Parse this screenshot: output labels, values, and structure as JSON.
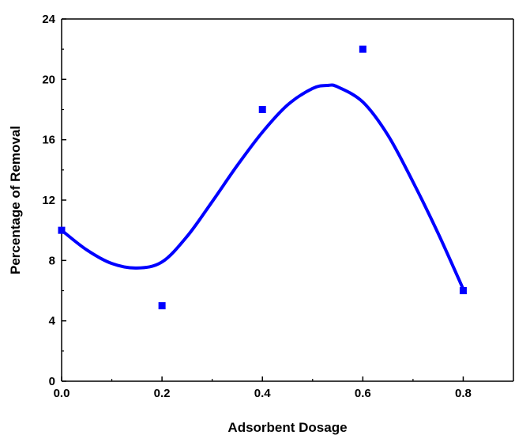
{
  "chart_data": {
    "type": "scatter",
    "title": "",
    "xlabel": "Adsorbent Dosage",
    "ylabel": "Percentage of Removal",
    "xlim": [
      0,
      0.9
    ],
    "ylim": [
      0,
      24
    ],
    "x_ticks": [
      0.0,
      0.2,
      0.4,
      0.6,
      0.8
    ],
    "x_tick_labels": [
      "0.0",
      "0.2",
      "0.4",
      "0.6",
      "0.8"
    ],
    "y_ticks": [
      0,
      4,
      8,
      12,
      16,
      20,
      24
    ],
    "y_tick_labels": [
      "0",
      "4",
      "8",
      "12",
      "16",
      "20",
      "24"
    ],
    "grid": false,
    "legend": false,
    "series": [
      {
        "type": "scatter",
        "marker": "square",
        "color": "#0000ff",
        "x": [
          0.0,
          0.2,
          0.4,
          0.6,
          0.8
        ],
        "y": [
          10,
          5,
          18,
          22,
          6
        ]
      },
      {
        "type": "line",
        "style": "smooth-fit",
        "color": "#0000ff",
        "x": [
          0.0,
          0.05,
          0.1,
          0.15,
          0.2,
          0.25,
          0.3,
          0.35,
          0.4,
          0.45,
          0.5,
          0.53,
          0.55,
          0.6,
          0.65,
          0.7,
          0.75,
          0.8
        ],
        "y": [
          10,
          8.7,
          7.8,
          7.5,
          7.9,
          9.6,
          11.9,
          14.3,
          16.5,
          18.3,
          19.4,
          19.6,
          19.5,
          18.5,
          16.3,
          13.2,
          9.8,
          6.1
        ]
      }
    ]
  }
}
